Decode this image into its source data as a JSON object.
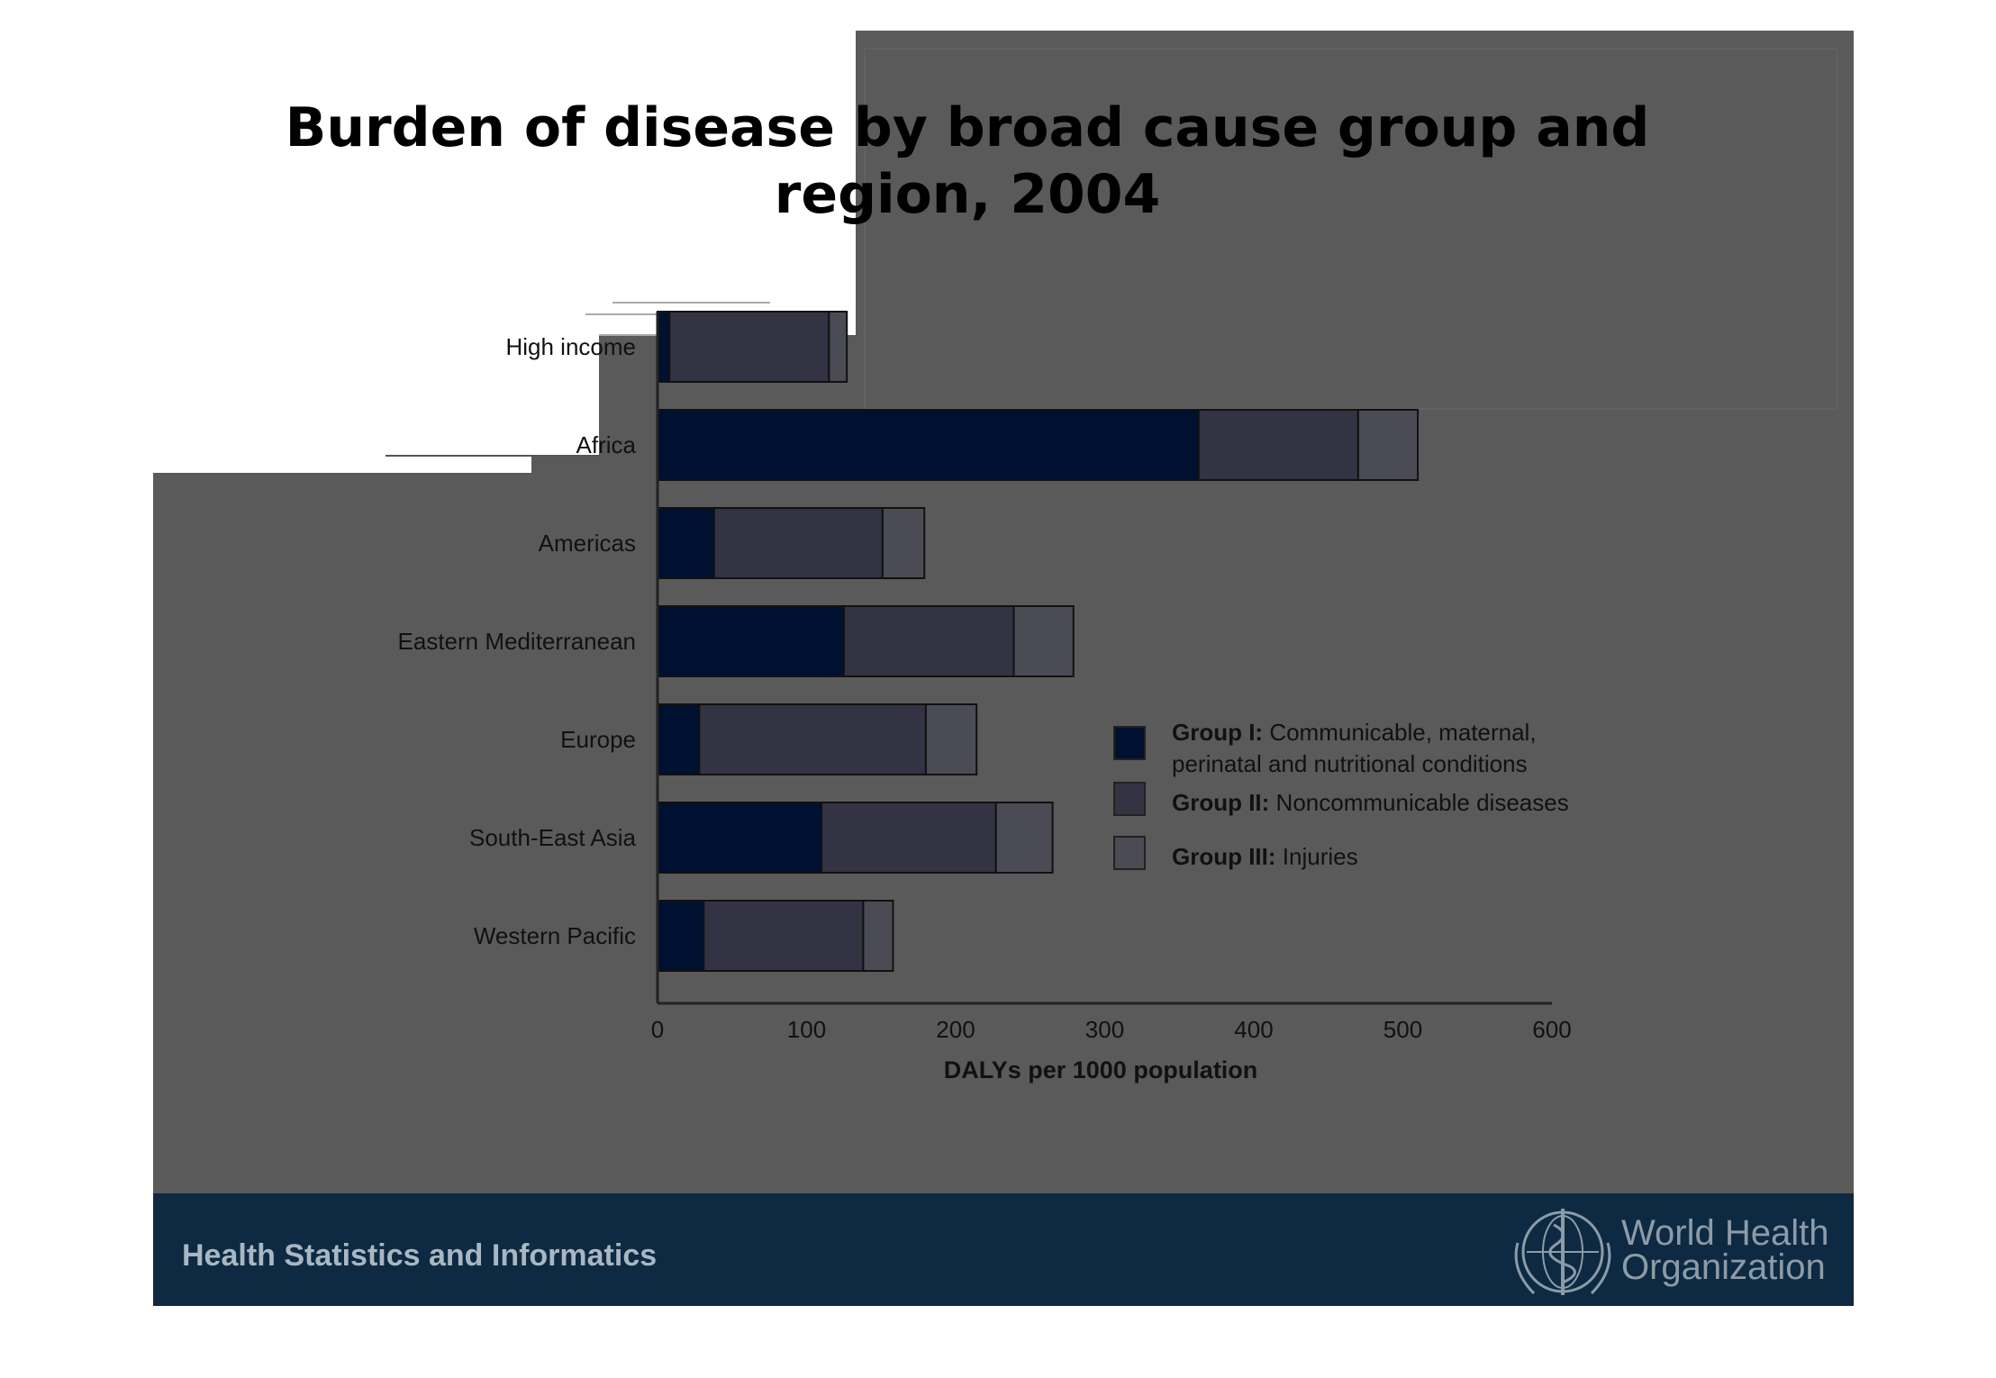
{
  "title": {
    "line1": "Burden of disease by broad cause group and",
    "line2": "region, 2004"
  },
  "footer": {
    "text": "Health Statistics and Informatics",
    "org_line1": "World Health",
    "org_line2": "Organization",
    "logo_icon": "who-emblem-icon"
  },
  "colors": {
    "group1": "#001030",
    "group2": "#333344",
    "group3": "#4b4b55",
    "panel": "#5a5a5a",
    "footer_band": "#0d2a42"
  },
  "chart_data": {
    "type": "bar",
    "orientation": "horizontal",
    "stacked": true,
    "title": "Burden of disease by broad cause group and region, 2004",
    "categories": [
      "High income",
      "Africa",
      "Americas",
      "Eastern Mediterranean",
      "Europe",
      "South-East Asia",
      "Western Pacific"
    ],
    "series": [
      {
        "name": "Group I: Communicable, maternal, perinatal and nutritional conditions",
        "values": [
          8,
          363,
          38,
          125,
          28,
          110,
          31
        ]
      },
      {
        "name": "Group II: Noncommunicable diseases",
        "values": [
          107,
          107,
          113,
          114,
          152,
          117,
          107
        ]
      },
      {
        "name": "Group III: Injuries",
        "values": [
          12,
          40,
          28,
          40,
          34,
          38,
          20
        ]
      }
    ],
    "legend": [
      {
        "bold": "Group I:",
        "text": " Communicable, maternal,",
        "text2": "perinatal and nutritional conditions"
      },
      {
        "bold": "Group II:",
        "text": " Noncommunicable diseases",
        "text2": ""
      },
      {
        "bold": "Group III:",
        "text": " Injuries",
        "text2": ""
      }
    ],
    "xticks": [
      "0",
      "100",
      "200",
      "300",
      "400",
      "500",
      "600"
    ],
    "xlim": [
      0,
      600
    ],
    "xlabel": "DALYs per 1000 population",
    "ylabel": "",
    "legend_position": "right",
    "grid": false
  }
}
